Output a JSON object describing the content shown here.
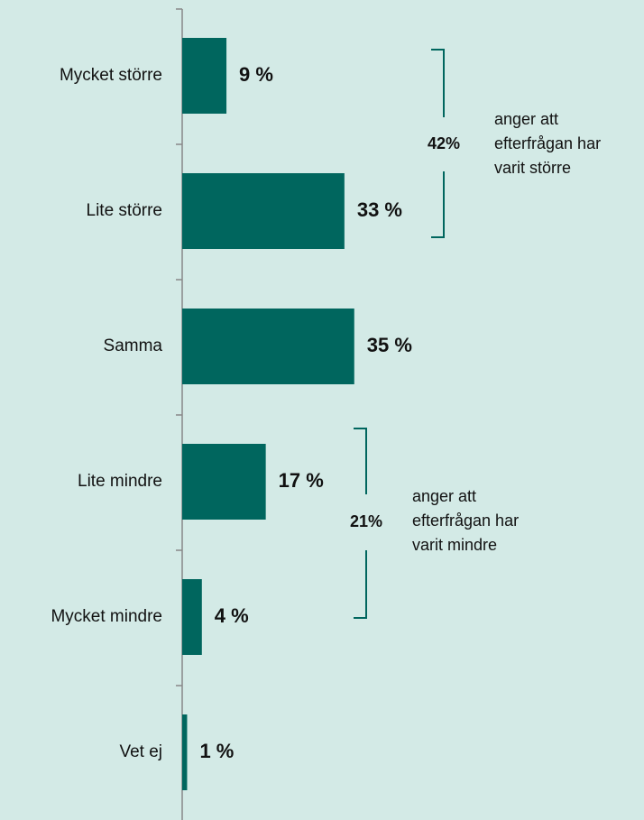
{
  "chart_data": {
    "type": "bar",
    "orientation": "horizontal",
    "categories": [
      "Mycket större",
      "Lite större",
      "Samma",
      "Lite mindre",
      "Mycket mindre",
      "Vet ej"
    ],
    "values": [
      9,
      33,
      35,
      17,
      4,
      1
    ],
    "value_labels": [
      "9 %",
      "33 %",
      "35 %",
      "17 %",
      "4 %",
      "1 %"
    ],
    "color": "#00665e",
    "annotations": [
      {
        "label": "42%",
        "text": [
          "anger att",
          "efterfrågan har",
          "varit större"
        ]
      },
      {
        "label": "21%",
        "text": [
          "anger att",
          "efterfrågan har",
          "varit mindre"
        ]
      }
    ]
  }
}
